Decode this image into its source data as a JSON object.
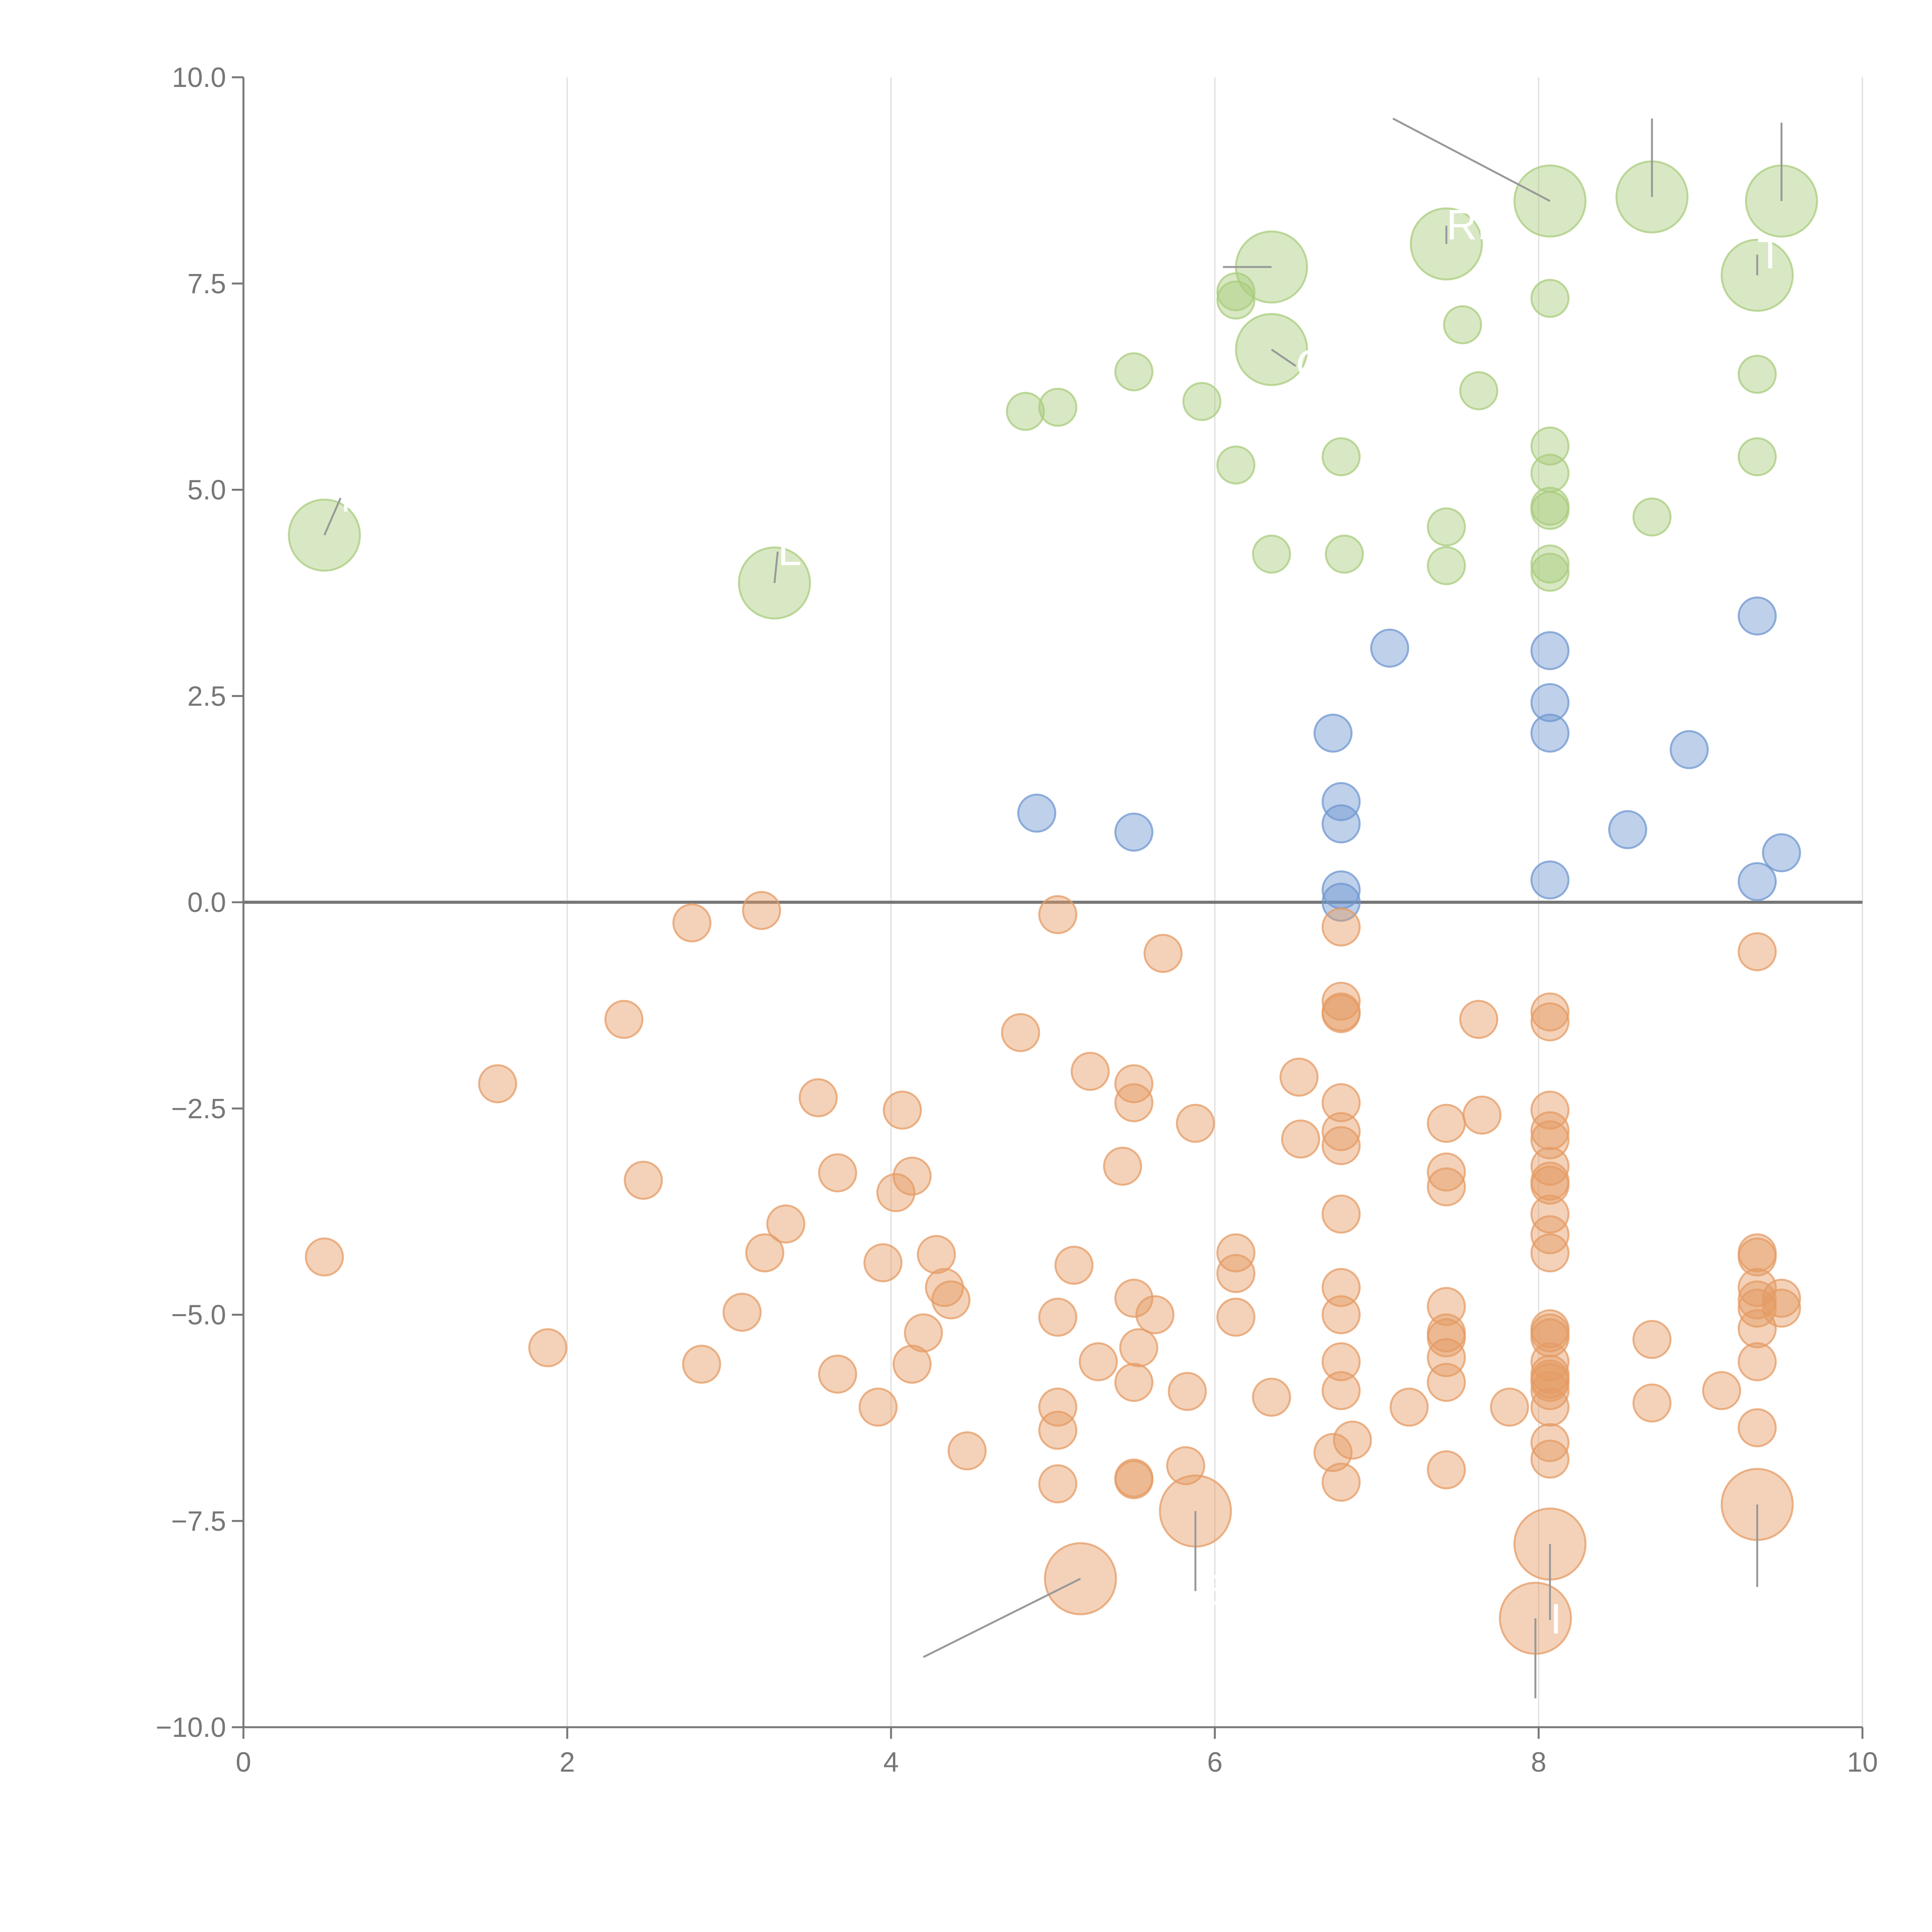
{
  "chart_data": {
    "type": "scatter",
    "title": "",
    "xlabel": "",
    "ylabel": "",
    "xlim": [
      0,
      10
    ],
    "ylim": [
      -10,
      10
    ],
    "grid": "vertical",
    "x_ticks": [
      "0",
      "2",
      "4",
      "6",
      "8",
      "10"
    ],
    "x_tick_values": [
      0,
      2,
      4,
      6,
      8,
      10
    ],
    "y_ticks": [
      "10.0",
      "7.5",
      "5.0",
      "2.5",
      "0.0",
      "−2.5",
      "−5.0",
      "−7.5",
      "−10.0"
    ],
    "y_tick_values": [
      10,
      7.5,
      5,
      2.5,
      0,
      -2.5,
      -5,
      -7.5,
      -10
    ],
    "zero_line": 0,
    "colors": {
      "high": "#a9cc7d",
      "mid": "#6f97d0",
      "low": "#e59b64",
      "axis": "#777777",
      "grid": "#dddddd",
      "leader": "#999999",
      "label": "#ffffff"
    },
    "series": [
      {
        "name": "high",
        "points": [
          [
            0.5,
            4.45,
            "large"
          ],
          [
            3.28,
            3.87,
            "large"
          ],
          [
            4.83,
            5.95
          ],
          [
            5.03,
            6.0
          ],
          [
            5.5,
            6.43
          ],
          [
            5.92,
            6.07
          ],
          [
            6.13,
            5.3
          ],
          [
            6.13,
            7.3
          ],
          [
            6.13,
            7.4
          ],
          [
            6.35,
            7.7,
            "large"
          ],
          [
            6.35,
            6.7,
            "large"
          ],
          [
            6.35,
            4.22
          ],
          [
            6.78,
            5.4
          ],
          [
            6.8,
            4.22
          ],
          [
            7.43,
            7.98,
            "large"
          ],
          [
            7.43,
            4.55
          ],
          [
            7.43,
            4.08
          ],
          [
            7.53,
            7.0
          ],
          [
            7.63,
            6.2
          ],
          [
            8.07,
            8.5,
            "large"
          ],
          [
            8.07,
            7.32
          ],
          [
            8.07,
            5.53
          ],
          [
            8.07,
            5.2
          ],
          [
            8.07,
            4.8
          ],
          [
            8.07,
            4.75
          ],
          [
            8.07,
            4.1
          ],
          [
            8.07,
            4.0
          ],
          [
            8.7,
            8.55,
            "large"
          ],
          [
            8.7,
            4.67
          ],
          [
            9.35,
            7.6,
            "large"
          ],
          [
            9.35,
            6.4
          ],
          [
            9.35,
            5.4
          ],
          [
            9.5,
            8.5,
            "large"
          ]
        ]
      },
      {
        "name": "mid",
        "points": [
          [
            4.9,
            1.08
          ],
          [
            5.5,
            0.85
          ],
          [
            6.73,
            2.05
          ],
          [
            6.78,
            1.22
          ],
          [
            6.78,
            0.95
          ],
          [
            6.78,
            0.15
          ],
          [
            6.78,
            0.0
          ],
          [
            7.08,
            3.08
          ],
          [
            8.07,
            3.05
          ],
          [
            8.07,
            2.42
          ],
          [
            8.07,
            2.05
          ],
          [
            8.07,
            0.27
          ],
          [
            8.55,
            0.88
          ],
          [
            8.93,
            1.85
          ],
          [
            9.35,
            3.47
          ],
          [
            9.35,
            0.25
          ],
          [
            9.5,
            0.6
          ]
        ]
      },
      {
        "name": "low",
        "points": [
          [
            0.5,
            -4.3
          ],
          [
            1.57,
            -2.2
          ],
          [
            1.88,
            -5.4
          ],
          [
            2.35,
            -1.42
          ],
          [
            2.47,
            -3.37
          ],
          [
            2.77,
            -0.25
          ],
          [
            2.83,
            -5.6
          ],
          [
            3.08,
            -4.97
          ],
          [
            3.2,
            -0.1
          ],
          [
            3.22,
            -4.25
          ],
          [
            3.35,
            -3.9
          ],
          [
            3.55,
            -2.37
          ],
          [
            3.67,
            -3.28
          ],
          [
            3.67,
            -5.72
          ],
          [
            3.92,
            -6.12
          ],
          [
            3.95,
            -4.37
          ],
          [
            4.03,
            -3.52
          ],
          [
            4.07,
            -2.52
          ],
          [
            4.13,
            -3.32
          ],
          [
            4.13,
            -5.6
          ],
          [
            4.2,
            -5.22
          ],
          [
            4.28,
            -4.27
          ],
          [
            4.33,
            -4.67
          ],
          [
            4.37,
            -4.82
          ],
          [
            4.47,
            -6.65
          ],
          [
            4.8,
            -1.58
          ],
          [
            5.03,
            -0.15
          ],
          [
            5.03,
            -5.03
          ],
          [
            5.03,
            -6.12
          ],
          [
            5.03,
            -6.4
          ],
          [
            5.03,
            -7.05
          ],
          [
            5.13,
            -4.4
          ],
          [
            5.17,
            -8.2,
            "large"
          ],
          [
            5.23,
            -2.05
          ],
          [
            5.28,
            -5.57
          ],
          [
            5.43,
            -3.2
          ],
          [
            5.5,
            -2.2
          ],
          [
            5.5,
            -2.43
          ],
          [
            5.5,
            -4.8
          ],
          [
            5.5,
            -5.82
          ],
          [
            5.5,
            -7.0
          ],
          [
            5.5,
            -6.98
          ],
          [
            5.53,
            -5.4
          ],
          [
            5.63,
            -5.0
          ],
          [
            5.68,
            -0.62
          ],
          [
            5.82,
            -6.83
          ],
          [
            5.83,
            -5.93
          ],
          [
            5.88,
            -2.68
          ],
          [
            5.88,
            -7.38,
            "large"
          ],
          [
            6.13,
            -4.25
          ],
          [
            6.13,
            -4.5
          ],
          [
            6.13,
            -5.03
          ],
          [
            6.35,
            -6.0
          ],
          [
            6.52,
            -2.12
          ],
          [
            6.53,
            -2.87
          ],
          [
            6.73,
            -6.67
          ],
          [
            6.78,
            -0.3
          ],
          [
            6.78,
            -1.2
          ],
          [
            6.78,
            -1.33
          ],
          [
            6.78,
            -1.35
          ],
          [
            6.78,
            -2.43
          ],
          [
            6.78,
            -2.78
          ],
          [
            6.78,
            -2.95
          ],
          [
            6.78,
            -3.78
          ],
          [
            6.78,
            -4.67
          ],
          [
            6.78,
            -5.0
          ],
          [
            6.78,
            -5.57
          ],
          [
            6.78,
            -5.92
          ],
          [
            6.78,
            -7.03
          ],
          [
            6.85,
            -6.52
          ],
          [
            7.2,
            -6.12
          ],
          [
            7.43,
            -2.68
          ],
          [
            7.43,
            -3.27
          ],
          [
            7.43,
            -3.45
          ],
          [
            7.43,
            -4.9
          ],
          [
            7.43,
            -5.22
          ],
          [
            7.43,
            -5.28
          ],
          [
            7.43,
            -5.52
          ],
          [
            7.43,
            -5.82
          ],
          [
            7.43,
            -6.88
          ],
          [
            7.63,
            -1.42
          ],
          [
            7.65,
            -2.58
          ],
          [
            7.82,
            -6.12
          ],
          [
            7.98,
            -8.68,
            "large"
          ],
          [
            8.07,
            -1.33
          ],
          [
            8.07,
            -1.45
          ],
          [
            8.07,
            -2.52
          ],
          [
            8.07,
            -2.77
          ],
          [
            8.07,
            -2.88
          ],
          [
            8.07,
            -3.2
          ],
          [
            8.07,
            -3.38
          ],
          [
            8.07,
            -3.43
          ],
          [
            8.07,
            -3.78
          ],
          [
            8.07,
            -4.03
          ],
          [
            8.07,
            -4.25
          ],
          [
            8.07,
            -5.17
          ],
          [
            8.07,
            -5.22
          ],
          [
            8.07,
            -5.28
          ],
          [
            8.07,
            -5.57
          ],
          [
            8.07,
            -5.72
          ],
          [
            8.07,
            -5.78
          ],
          [
            8.07,
            -5.82
          ],
          [
            8.07,
            -5.92
          ],
          [
            8.07,
            -6.12
          ],
          [
            8.07,
            -6.55
          ],
          [
            8.07,
            -6.75
          ],
          [
            8.07,
            -7.78,
            "large"
          ],
          [
            8.7,
            -5.3
          ],
          [
            8.7,
            -6.07
          ],
          [
            9.13,
            -5.92
          ],
          [
            9.35,
            -0.6
          ],
          [
            9.35,
            -4.25
          ],
          [
            9.35,
            -4.3
          ],
          [
            9.35,
            -4.67
          ],
          [
            9.35,
            -4.82
          ],
          [
            9.35,
            -4.92
          ],
          [
            9.35,
            -5.17
          ],
          [
            9.35,
            -5.57
          ],
          [
            9.35,
            -6.37
          ],
          [
            9.35,
            -7.3,
            "large"
          ],
          [
            9.5,
            -4.8
          ],
          [
            9.5,
            -4.92
          ]
        ]
      }
    ],
    "annotations": [
      {
        "text": "M",
        "x": 0.5,
        "y": 4.45,
        "lx": 0.6,
        "ly": 4.9
      },
      {
        "text": "L",
        "x": 3.28,
        "y": 3.87,
        "lx": 3.3,
        "ly": 4.25
      },
      {
        "text": "",
        "x": 6.35,
        "y": 7.7,
        "lx": 6.05,
        "ly": 7.7
      },
      {
        "text": "RF",
        "x": 7.43,
        "y": 7.98,
        "lx": 7.43,
        "ly": 8.2
      },
      {
        "text": "",
        "x": 8.07,
        "y": 8.5,
        "lx": 7.1,
        "ly": 9.5
      },
      {
        "text": "",
        "x": 8.7,
        "y": 8.55,
        "lx": 8.7,
        "ly": 9.5
      },
      {
        "text": "",
        "x": 9.5,
        "y": 8.5,
        "lx": 9.5,
        "ly": 9.45
      },
      {
        "text": "T",
        "x": 9.35,
        "y": 7.6,
        "lx": 9.35,
        "ly": 7.85
      },
      {
        "text": "C",
        "x": 6.35,
        "y": 6.7,
        "lx": 6.5,
        "ly": 6.5
      },
      {
        "text": "",
        "x": 5.17,
        "y": -8.2,
        "lx": 4.2,
        "ly": -9.15
      },
      {
        "text": "E",
        "x": 5.88,
        "y": -7.38,
        "lx": 5.88,
        "ly": -8.35
      },
      {
        "text": "I",
        "x": 8.07,
        "y": -7.78,
        "lx": 8.07,
        "ly": -8.7
      },
      {
        "text": "",
        "x": 7.98,
        "y": -8.68,
        "lx": 7.98,
        "ly": -9.65
      },
      {
        "text": "",
        "x": 9.35,
        "y": -7.3,
        "lx": 9.35,
        "ly": -8.3
      }
    ]
  }
}
